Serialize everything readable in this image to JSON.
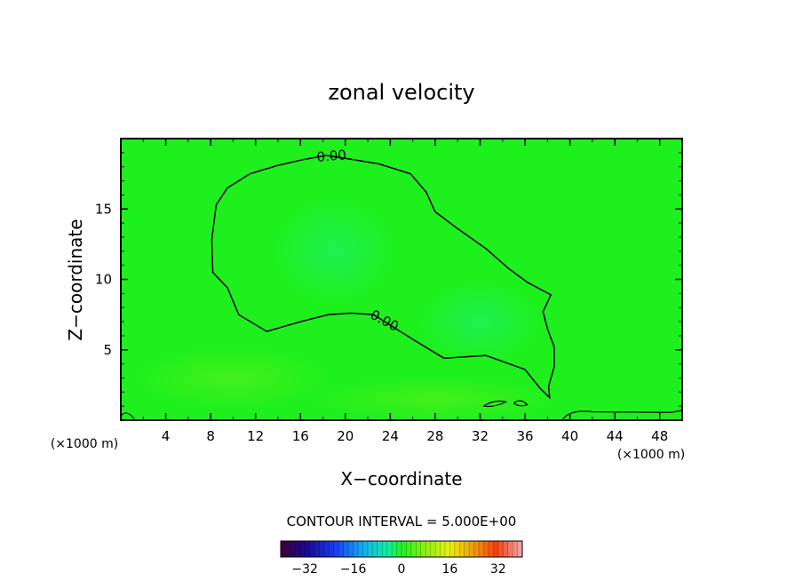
{
  "chart_data": {
    "type": "heatmap",
    "title": "zonal velocity",
    "xlabel": "X−coordinate",
    "ylabel": "Z−coordinate",
    "x_unit_label": "(×1000 m)",
    "xlim": [
      0,
      50
    ],
    "ylim": [
      0,
      20
    ],
    "x_ticks": [
      4,
      8,
      12,
      16,
      20,
      24,
      28,
      32,
      36,
      40,
      44,
      48
    ],
    "y_ticks": [
      5,
      10,
      15
    ],
    "grid": false,
    "background_color": "#1ef01e",
    "contour_lines": [
      {
        "label": "0.00",
        "points": [
          [
            16.2,
            18.5
          ],
          [
            18.3,
            18.8
          ],
          [
            20,
            18.6
          ],
          [
            23,
            18.2
          ],
          [
            25.8,
            17.5
          ],
          [
            27.2,
            16.2
          ],
          [
            28,
            14.8
          ],
          [
            30,
            13.6
          ],
          [
            32.5,
            12.2
          ],
          [
            34.5,
            10.8
          ],
          [
            36.2,
            9.8
          ],
          [
            38.3,
            8.9
          ],
          [
            37.6,
            7.7
          ],
          [
            38,
            6.5
          ],
          [
            38.6,
            5.2
          ],
          [
            38.6,
            3.8
          ],
          [
            38.1,
            2.4
          ],
          [
            38.2,
            1.6
          ],
          [
            37.3,
            2.3
          ],
          [
            36,
            3.6
          ],
          [
            32.5,
            4.6
          ],
          [
            28.8,
            4.4
          ],
          [
            26.5,
            5.5
          ],
          [
            24.5,
            6.5
          ],
          [
            22.5,
            7.5
          ],
          [
            20.5,
            7.6
          ],
          [
            18.5,
            7.5
          ],
          [
            16,
            7
          ],
          [
            13,
            6.3
          ],
          [
            10.5,
            7.5
          ],
          [
            9.5,
            9.4
          ],
          [
            8.2,
            10.5
          ],
          [
            8.1,
            12.8
          ],
          [
            8.5,
            15.3
          ],
          [
            9.5,
            16.5
          ],
          [
            11.5,
            17.5
          ],
          [
            14,
            18.1
          ],
          [
            16.2,
            18.5
          ]
        ]
      }
    ],
    "contour_interval_label": "CONTOUR INTERVAL = 5.000E+00",
    "colorbar": {
      "ticks": [
        -32,
        -16,
        0,
        16,
        32
      ],
      "range": [
        -40,
        40
      ]
    }
  }
}
